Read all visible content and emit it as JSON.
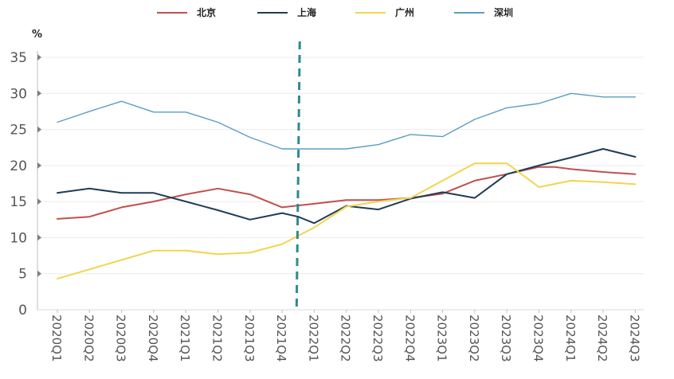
{
  "chart_data": {
    "type": "line",
    "ylabel": "%",
    "ylim": [
      0,
      35
    ],
    "yticks": [
      0,
      5,
      10,
      15,
      20,
      25,
      30,
      35
    ],
    "grid": true,
    "legend_position": "top",
    "categories": [
      "2020Q1",
      "2020Q2",
      "2020Q3",
      "2020Q4",
      "2021Q1",
      "2021Q2",
      "2021Q3",
      "2021Q4",
      "2022Q1",
      "2022Q2",
      "2022Q3",
      "2022Q4",
      "2023Q1",
      "2023Q2",
      "2023Q3",
      "2023Q4",
      "2024Q1",
      "2024Q2",
      "2024Q3"
    ],
    "divider_between": [
      "2021Q4",
      "2022Q1"
    ],
    "series": [
      {
        "name": "北京",
        "color": "#c0504d",
        "x": [
          0,
          1,
          2,
          3,
          4,
          5,
          6,
          7,
          8,
          9,
          10,
          11,
          12,
          13,
          14,
          15,
          15.5,
          16,
          17,
          18
        ],
        "values": [
          12.6,
          12.9,
          14.2,
          15.0,
          16.0,
          16.8,
          16.0,
          14.2,
          14.7,
          15.2,
          15.2,
          15.5,
          16.1,
          17.9,
          18.8,
          19.8,
          19.8,
          19.5,
          19.1,
          18.8
        ]
      },
      {
        "name": "上海",
        "color": "#1f3c58",
        "x": [
          0,
          1,
          2,
          3,
          4,
          5,
          6,
          7,
          7.5,
          8,
          9,
          10,
          11,
          12,
          13,
          14,
          15,
          16,
          17,
          18
        ],
        "values": [
          16.2,
          16.8,
          16.2,
          16.2,
          15.0,
          13.8,
          12.5,
          13.4,
          12.9,
          12.0,
          14.4,
          13.9,
          15.4,
          16.3,
          15.5,
          18.8,
          20.0,
          21.1,
          22.3,
          21.2
        ]
      },
      {
        "name": "广州",
        "color": "#f2d54d",
        "x": [
          0,
          1,
          2,
          3,
          4,
          5,
          6,
          7,
          8,
          9,
          10,
          11,
          12,
          13,
          14,
          15,
          16,
          17,
          18
        ],
        "values": [
          4.3,
          5.6,
          6.9,
          8.2,
          8.2,
          7.7,
          7.9,
          9.1,
          11.4,
          14.3,
          15.0,
          15.5,
          17.9,
          20.3,
          20.3,
          17.0,
          17.9,
          17.7,
          17.4
        ]
      },
      {
        "name": "深圳",
        "color": "#5a9ec2",
        "x": [
          0,
          1,
          2,
          3,
          4,
          5,
          6,
          7,
          8,
          9,
          10,
          11,
          12,
          13,
          14,
          15,
          16,
          17,
          18
        ],
        "values": [
          26.0,
          27.5,
          28.9,
          27.4,
          27.4,
          26.0,
          23.9,
          22.3,
          22.3,
          22.3,
          22.9,
          24.3,
          24.0,
          26.4,
          28.0,
          28.6,
          30.0,
          29.5,
          29.5
        ]
      }
    ]
  }
}
